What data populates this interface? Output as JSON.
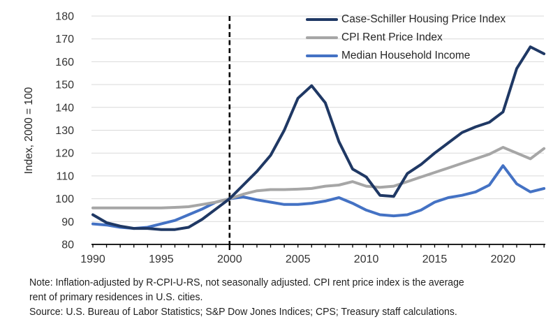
{
  "chart_data": {
    "type": "line",
    "title": "",
    "ylabel": "Index, 2000 = 100",
    "ylim": [
      80,
      180
    ],
    "ytick_step": 10,
    "yticks": [
      80,
      90,
      100,
      110,
      120,
      130,
      140,
      150,
      160,
      170,
      180
    ],
    "x": [
      1990,
      1991,
      1992,
      1993,
      1994,
      1995,
      1996,
      1997,
      1998,
      1999,
      2000,
      2001,
      2002,
      2003,
      2004,
      2005,
      2006,
      2007,
      2008,
      2009,
      2010,
      2011,
      2012,
      2013,
      2014,
      2015,
      2016,
      2017,
      2018,
      2019,
      2020,
      2021,
      2022,
      2023
    ],
    "xticks": [
      1990,
      1995,
      2000,
      2005,
      2010,
      2015,
      2020
    ],
    "grid": true,
    "legend_position": "top-right",
    "reference_line": {
      "x": 2000,
      "style": "dashed",
      "color": "#000000"
    },
    "series": [
      {
        "name": "Case-Schiller Housing Price Index",
        "color": "#1F3864",
        "values": [
          93,
          89.5,
          88,
          87,
          87,
          86.5,
          86.5,
          87.5,
          91,
          95.5,
          100,
          106,
          112,
          119,
          130,
          144,
          149.5,
          142,
          125,
          113,
          109.5,
          101.5,
          101,
          111,
          115,
          120,
          124.5,
          129,
          131.5,
          133.5,
          138,
          157,
          166.5,
          163.5
        ]
      },
      {
        "name": "CPI Rent Price Index",
        "color": "#A6A6A6",
        "values": [
          96,
          96,
          96,
          96,
          96,
          96,
          96.2,
          96.5,
          97.5,
          98.5,
          100,
          102,
          103.5,
          104,
          104,
          104.2,
          104.5,
          105.5,
          106,
          107.5,
          105.5,
          105,
          105.5,
          107.5,
          109.5,
          111.5,
          113.5,
          115.5,
          117.5,
          119.5,
          122.5,
          120,
          117.5,
          122
        ]
      },
      {
        "name": "Median Household Income",
        "color": "#4472C4",
        "values": [
          89,
          88.5,
          87.5,
          87,
          87.5,
          89,
          90.5,
          93,
          95.5,
          98.5,
          100,
          100.8,
          99.5,
          98.5,
          97.5,
          97.5,
          98,
          99,
          100.5,
          98,
          95,
          93,
          92.5,
          93,
          95,
          98.5,
          100.5,
          101.5,
          103,
          106,
          114.5,
          106.5,
          103,
          104.5
        ]
      }
    ],
    "colors": {
      "grid": "#D9D9D9",
      "axis": "#000000",
      "tick_label": "#333333"
    }
  },
  "notes": {
    "line1": "Note: Inflation-adjusted by R-CPI-U-RS, not seasonally adjusted. CPI rent price index is the average",
    "line2": "rent of primary residences in U.S. cities.",
    "line3": "Source: U.S. Bureau of Labor Statistics; S&P Dow Jones Indices; CPS; Treasury staff calculations."
  }
}
